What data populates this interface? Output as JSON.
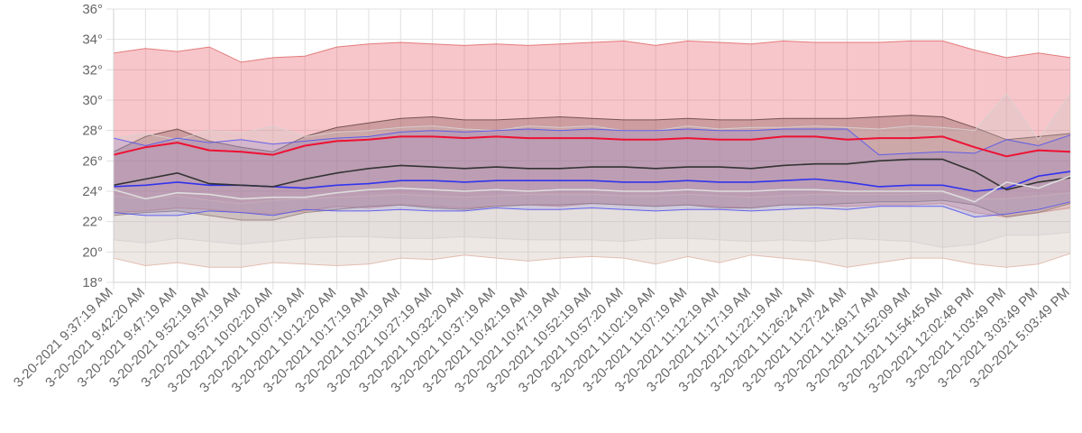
{
  "chart_data": {
    "type": "area",
    "title": "",
    "xlabel": "",
    "ylabel": "",
    "y_unit_suffix": "°",
    "ylim": [
      18,
      36
    ],
    "y_ticks": [
      18,
      20,
      22,
      24,
      26,
      28,
      30,
      32,
      34,
      36
    ],
    "grid": true,
    "legend": "none",
    "x_tick_labels": [
      "3-20-2021 9:37:19 AM",
      "3-20-2021 9:42:20 AM",
      "3-20-2021 9:47:19 AM",
      "3-20-2021 9:52:19 AM",
      "3-20-2021 9:57:19 AM",
      "3-20-2021 10:02:20 AM",
      "3-20-2021 10:07:19 AM",
      "3-20-2021 10:12:20 AM",
      "3-20-2021 10:17:19 AM",
      "3-20-2021 10:22:19 AM",
      "3-20-2021 10:27:19 AM",
      "3-20-2021 10:32:20 AM",
      "3-20-2021 10:37:19 AM",
      "3-20-2021 10:42:19 AM",
      "3-20-2021 10:47:19 AM",
      "3-20-2021 10:52:19 AM",
      "3-20-2021 10:57:20 AM",
      "3-20-2021 11:02:19 AM",
      "3-20-2021 11:07:19 AM",
      "3-20-2021 11:12:19 AM",
      "3-20-2021 11:17:19 AM",
      "3-20-2021 11:22:19 AM",
      "3-20-2021 11:26:24 AM",
      "3-20-2021 11:27:24 AM",
      "3-20-2021 11:49:17 AM",
      "3-20-2021 11:52:09 AM",
      "3-20-2021 11:54:45 AM",
      "3-20-2021 12:02:48 PM",
      "3-20-2021 1:03:49 PM",
      "3-20-2021 3:03:49 PM",
      "3-20-2021 5:03:49 PM"
    ],
    "bands": [
      {
        "fill": "rgba(232,92,104,0.35)",
        "stroke": "#e07070",
        "upper": [
          33.1,
          33.4,
          33.2,
          33.5,
          32.5,
          32.8,
          32.9,
          33.5,
          33.7,
          33.8,
          33.7,
          33.6,
          33.7,
          33.6,
          33.7,
          33.8,
          33.9,
          33.6,
          33.9,
          33.8,
          33.7,
          33.9,
          33.8,
          33.8,
          33.8,
          33.9,
          33.9,
          33.3,
          32.8,
          33.1,
          32.8
        ],
        "lower": [
          22.6,
          22.7,
          22.9,
          22.8,
          22.6,
          22.5,
          22.7,
          23.0,
          22.9,
          23.1,
          23.0,
          22.9,
          23.0,
          23.1,
          23.0,
          23.2,
          23.1,
          23.0,
          23.1,
          23.0,
          22.9,
          23.1,
          23.1,
          23.0,
          23.1,
          23.1,
          23.2,
          22.6,
          22.3,
          22.6,
          22.9
        ]
      },
      {
        "fill": "rgba(120,72,72,0.33)",
        "stroke": "#6a4a4a",
        "upper": [
          26.6,
          27.6,
          28.1,
          27.3,
          26.9,
          26.6,
          27.6,
          28.2,
          28.5,
          28.8,
          28.9,
          28.7,
          28.7,
          28.8,
          28.9,
          28.8,
          28.7,
          28.7,
          28.8,
          28.7,
          28.7,
          28.8,
          28.8,
          28.8,
          28.9,
          29.0,
          28.9,
          28.2,
          27.4,
          27.6,
          27.8
        ],
        "lower": [
          22.4,
          22.6,
          22.7,
          22.4,
          22.1,
          22.1,
          22.6,
          22.8,
          23.0,
          23.1,
          22.9,
          22.8,
          23.0,
          23.1,
          23.1,
          23.2,
          23.1,
          23.0,
          23.1,
          22.9,
          22.9,
          23.1,
          23.1,
          23.2,
          23.3,
          23.3,
          23.4,
          23.1,
          22.3,
          22.6,
          23.2
        ]
      },
      {
        "fill": "rgba(200,180,170,0.30)",
        "stroke": "#e0b8a8",
        "upper": [
          23.7,
          23.5,
          23.7,
          23.4,
          23.2,
          23.4,
          23.5,
          23.6,
          23.7,
          23.8,
          23.7,
          23.6,
          23.7,
          23.8,
          23.8,
          23.8,
          23.7,
          23.7,
          23.8,
          23.7,
          23.6,
          23.7,
          23.8,
          23.8,
          23.8,
          23.8,
          23.9,
          23.5,
          23.5,
          23.7,
          23.9
        ],
        "lower": [
          19.6,
          19.1,
          19.3,
          19.0,
          19.0,
          19.3,
          19.2,
          19.1,
          19.2,
          19.6,
          19.5,
          19.8,
          19.6,
          19.4,
          19.6,
          19.7,
          19.6,
          19.2,
          19.7,
          19.3,
          19.8,
          19.6,
          19.4,
          19.0,
          19.3,
          19.6,
          19.6,
          19.2,
          19.0,
          19.2,
          19.9
        ]
      },
      {
        "fill": "rgba(205,198,198,0.28)",
        "stroke": "#d8d0d0",
        "upper": [
          27.5,
          27.8,
          27.4,
          28.0,
          27.8,
          28.3,
          27.6,
          27.9,
          28.0,
          28.2,
          28.3,
          28.1,
          28.0,
          28.3,
          28.2,
          28.3,
          28.0,
          28.0,
          28.3,
          28.1,
          28.2,
          28.2,
          28.3,
          28.2,
          28.1,
          28.3,
          28.2,
          28.0,
          30.4,
          27.4,
          30.4
        ],
        "lower": [
          20.8,
          20.6,
          20.9,
          20.7,
          20.5,
          20.7,
          20.9,
          21.0,
          21.0,
          20.9,
          20.9,
          21.0,
          20.9,
          20.8,
          20.8,
          20.8,
          20.7,
          20.9,
          20.9,
          20.8,
          20.7,
          20.8,
          20.7,
          20.9,
          20.8,
          20.7,
          20.3,
          20.5,
          21.1,
          21.1,
          21.3
        ]
      },
      {
        "fill": "rgba(110,110,225,0.18)",
        "stroke": "#5555ee",
        "upper": [
          27.5,
          27.0,
          27.5,
          27.2,
          27.4,
          27.1,
          27.3,
          27.5,
          27.6,
          27.9,
          28.0,
          27.9,
          28.0,
          28.1,
          28.0,
          28.1,
          28.0,
          28.0,
          28.1,
          28.0,
          28.0,
          28.1,
          28.1,
          28.1,
          26.4,
          26.5,
          26.6,
          26.5,
          27.4,
          27.0,
          27.7
        ],
        "lower": [
          22.6,
          22.4,
          22.4,
          22.7,
          22.6,
          22.4,
          22.8,
          22.7,
          22.7,
          22.8,
          22.7,
          22.7,
          22.9,
          22.8,
          22.8,
          22.9,
          22.8,
          22.7,
          22.8,
          22.8,
          22.7,
          22.8,
          22.9,
          22.8,
          23.0,
          23.0,
          23.0,
          22.3,
          22.5,
          22.8,
          23.3
        ]
      }
    ],
    "series": [
      {
        "color": "#ee1133",
        "width": 2.0,
        "values": [
          26.4,
          26.9,
          27.2,
          26.7,
          26.6,
          26.4,
          27.0,
          27.3,
          27.4,
          27.6,
          27.6,
          27.5,
          27.6,
          27.5,
          27.5,
          27.5,
          27.4,
          27.4,
          27.5,
          27.4,
          27.4,
          27.6,
          27.6,
          27.4,
          27.5,
          27.5,
          27.6,
          26.9,
          26.3,
          26.7,
          26.6
        ]
      },
      {
        "color": "#3333ee",
        "width": 1.6,
        "values": [
          24.3,
          24.4,
          24.6,
          24.4,
          24.4,
          24.3,
          24.2,
          24.4,
          24.5,
          24.7,
          24.7,
          24.6,
          24.7,
          24.7,
          24.7,
          24.7,
          24.6,
          24.6,
          24.7,
          24.6,
          24.6,
          24.7,
          24.8,
          24.6,
          24.3,
          24.4,
          24.4,
          24.0,
          24.2,
          25.0,
          25.3
        ]
      },
      {
        "color": "#333333",
        "width": 1.6,
        "values": [
          24.4,
          24.8,
          25.2,
          24.5,
          24.4,
          24.3,
          24.8,
          25.2,
          25.5,
          25.7,
          25.6,
          25.5,
          25.6,
          25.5,
          25.5,
          25.6,
          25.6,
          25.5,
          25.6,
          25.6,
          25.5,
          25.7,
          25.8,
          25.8,
          26.0,
          26.1,
          26.1,
          25.3,
          24.1,
          24.6,
          24.9
        ]
      },
      {
        "color": "#dddddd",
        "width": 1.6,
        "values": [
          24.1,
          23.5,
          23.9,
          23.8,
          23.5,
          23.6,
          23.6,
          23.9,
          24.1,
          24.2,
          24.1,
          24.0,
          24.1,
          24.0,
          24.1,
          24.1,
          24.0,
          24.0,
          24.1,
          24.0,
          24.0,
          24.1,
          24.1,
          24.0,
          24.0,
          24.0,
          24.0,
          23.3,
          24.6,
          24.2,
          25.0
        ]
      }
    ]
  }
}
